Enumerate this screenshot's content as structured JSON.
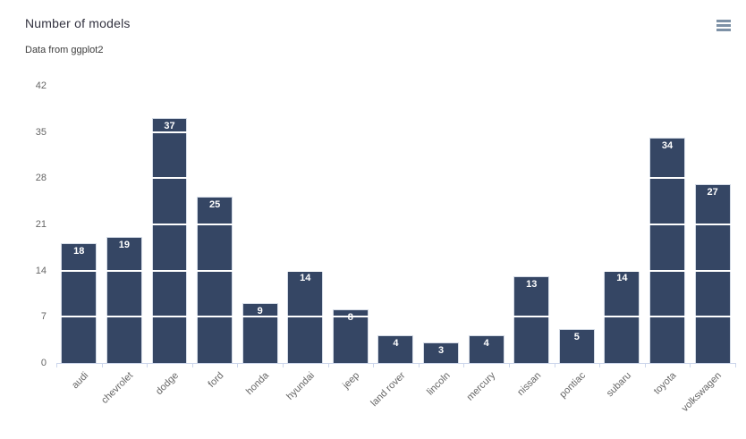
{
  "header": {
    "title": "Number of models",
    "subtitle": "Data from ggplot2",
    "menu_icon": "hamburger-menu-icon"
  },
  "chart_data": {
    "type": "bar",
    "title": "Number of models",
    "subtitle": "Data from ggplot2",
    "categories": [
      "audi",
      "chevrolet",
      "dodge",
      "ford",
      "honda",
      "hyundai",
      "jeep",
      "land rover",
      "lincoln",
      "mercury",
      "nissan",
      "pontiac",
      "subaru",
      "toyota",
      "volkswagen"
    ],
    "values": [
      18,
      19,
      37,
      25,
      9,
      14,
      8,
      4,
      3,
      4,
      13,
      5,
      14,
      34,
      27
    ],
    "xlabel": "",
    "ylabel": "",
    "ylim": [
      0,
      42
    ],
    "yticks": [
      0,
      7,
      14,
      21,
      28,
      35,
      42
    ],
    "grid": "horizontal-white-lines-over-bars",
    "legend": "none",
    "data_labels": "inside-top-white-bold",
    "x_label_rotation": -45,
    "colors": {
      "bar": "#354664",
      "bar_border": "#d4dbe6",
      "data_label": "#ffffff",
      "gridline": "#ffffff",
      "axis_line": "#ccd6eb",
      "tick_label": "#666666",
      "title": "#333340",
      "subtitle": "#3c3c3c",
      "menu_icon": "#7d91a6",
      "background": "#ffffff"
    }
  }
}
